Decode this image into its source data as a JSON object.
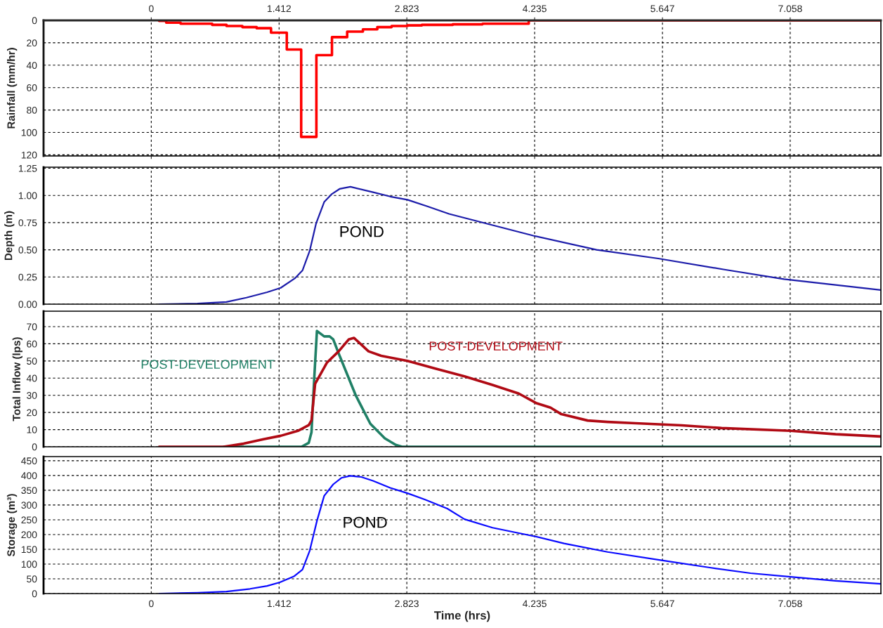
{
  "chart_data": [
    {
      "type": "step",
      "ylabel": "Rainfall (mm/hr)",
      "xlim": [
        -1.19,
        8.06
      ],
      "xticks": [
        0,
        1.412,
        2.823,
        4.235,
        5.647,
        7.058
      ],
      "x2lim": [
        -1.19,
        8.06
      ],
      "x2ticks": [
        0,
        1.412,
        2.823,
        4.235,
        5.647,
        7.058
      ],
      "ylim": [
        121,
        0
      ],
      "yticks": [
        0,
        20,
        40,
        60,
        80,
        100,
        120
      ],
      "grid": true,
      "tick_labels": "y",
      "series": [
        {
          "color": "#ff0000",
          "x": [
            0.086,
            0.165,
            0.324,
            0.673,
            0.831,
            1.006,
            1.164,
            1.323,
            1.497,
            1.656,
            1.824,
            1.996,
            2.164,
            2.338,
            2.497,
            2.655,
            2.83,
            2.989,
            3.33,
            3.66,
            4.17,
            8.06
          ],
          "values": [
            0.5,
            2,
            3,
            4,
            5,
            6,
            7,
            11,
            26,
            104,
            31,
            15,
            10,
            8,
            6,
            5,
            4.5,
            4,
            3.5,
            3,
            0,
            0
          ]
        }
      ]
    },
    {
      "type": "line",
      "ylabel": "Depth (m)",
      "xlim": [
        -1.19,
        8.06
      ],
      "xticks": [
        0,
        1.412,
        2.823,
        4.235,
        5.647,
        7.058
      ],
      "ylim": [
        0,
        1.26
      ],
      "yticks": [
        {
          "value": 0,
          "label": "0.00"
        },
        {
          "value": 0.25,
          "label": "0.25"
        },
        {
          "value": 0.5,
          "label": "0.50"
        },
        {
          "value": 0.75,
          "label": "0.75"
        },
        {
          "value": 1.0,
          "label": "1.00"
        },
        {
          "value": 1.25,
          "label": "1.25"
        }
      ],
      "grid": true,
      "tick_labels": "y",
      "series": [
        {
          "name": "POND",
          "color": "#1c1caa",
          "x": [
            0.086,
            0.51,
            0.83,
            1.05,
            1.28,
            1.43,
            1.59,
            1.67,
            1.75,
            1.82,
            1.91,
            1.99,
            2.08,
            2.2,
            2.45,
            2.64,
            2.83,
            3.05,
            3.29,
            4.22,
            4.92,
            5.6,
            6.32,
            6.99,
            8.06
          ],
          "values": [
            0,
            0.005,
            0.02,
            0.06,
            0.11,
            0.15,
            0.24,
            0.31,
            0.49,
            0.74,
            0.94,
            1.01,
            1.06,
            1.08,
            1.03,
            0.99,
            0.96,
            0.9,
            0.83,
            0.63,
            0.5,
            0.42,
            0.32,
            0.23,
            0.13
          ]
        }
      ]
    },
    {
      "type": "line",
      "ylabel": "Total Inflow (lps)",
      "xlim": [
        -1.19,
        8.06
      ],
      "xticks": [
        0,
        1.412,
        2.823,
        4.235,
        5.647,
        7.058
      ],
      "ylim": [
        0,
        79
      ],
      "yticks": [
        0,
        10,
        20,
        30,
        40,
        50,
        60,
        70
      ],
      "grid": true,
      "tick_labels": "y",
      "series": [
        {
          "name": "POST-DEVELOPMENT",
          "color": "#208066",
          "x": [
            0.8,
            1.66,
            1.74,
            1.77,
            1.8,
            1.83,
            1.91,
            1.97,
            2.01,
            2.07,
            2.26,
            2.42,
            2.58,
            2.7,
            2.77,
            8.06
          ],
          "values": [
            0,
            0,
            2.3,
            8.5,
            39.7,
            67.5,
            64.3,
            64.3,
            62.6,
            54.4,
            29.8,
            13.4,
            4.9,
            1.1,
            0,
            0
          ]
        },
        {
          "name": "POST-DEVELOPMENT",
          "color": "#b00a14",
          "x": [
            0.086,
            0.8,
            1.02,
            1.24,
            1.43,
            1.62,
            1.74,
            1.77,
            1.81,
            1.94,
            2.07,
            2.18,
            2.24,
            2.4,
            2.54,
            2.83,
            3.14,
            3.46,
            3.77,
            4.06,
            4.25,
            4.41,
            4.53,
            4.82,
            5.04,
            5.35,
            5.86,
            6.3,
            7.06,
            7.56,
            8.06
          ],
          "values": [
            0,
            0,
            1.8,
            4.4,
            6.4,
            9.3,
            12.6,
            15.4,
            36.7,
            49,
            55.6,
            62.5,
            63.4,
            55.6,
            53,
            50,
            45.5,
            41,
            36,
            31,
            25.5,
            22.8,
            19,
            15.3,
            14.5,
            13.7,
            12.5,
            10.9,
            9.3,
            7.3,
            6.0
          ]
        }
      ]
    },
    {
      "type": "line",
      "ylabel": "Storage (m³)",
      "xlabel": "Time (hrs)",
      "xlim": [
        -1.19,
        8.06
      ],
      "xticks": [
        0,
        1.412,
        2.823,
        4.235,
        5.647,
        7.058
      ],
      "ylim": [
        0,
        464
      ],
      "yticks": [
        0,
        50,
        100,
        150,
        200,
        250,
        300,
        350,
        400,
        450
      ],
      "grid": true,
      "series": [
        {
          "name": "POND",
          "color": "#0a0aff",
          "x": [
            0.086,
            0.51,
            0.83,
            1.09,
            1.28,
            1.42,
            1.58,
            1.67,
            1.75,
            1.83,
            1.91,
            2.01,
            2.1,
            2.2,
            2.32,
            2.45,
            2.64,
            2.83,
            3.02,
            3.27,
            3.46,
            3.77,
            4.235,
            4.56,
            5.04,
            5.65,
            6.17,
            6.62,
            7.06,
            7.56,
            8.06
          ],
          "values": [
            0,
            3,
            7,
            16,
            26,
            38,
            59,
            81,
            145,
            246,
            331,
            370,
            392,
            399,
            395,
            382,
            358,
            340,
            319,
            288,
            252,
            223,
            194,
            170,
            141,
            112,
            88,
            69,
            57,
            43,
            33
          ]
        }
      ]
    }
  ]
}
